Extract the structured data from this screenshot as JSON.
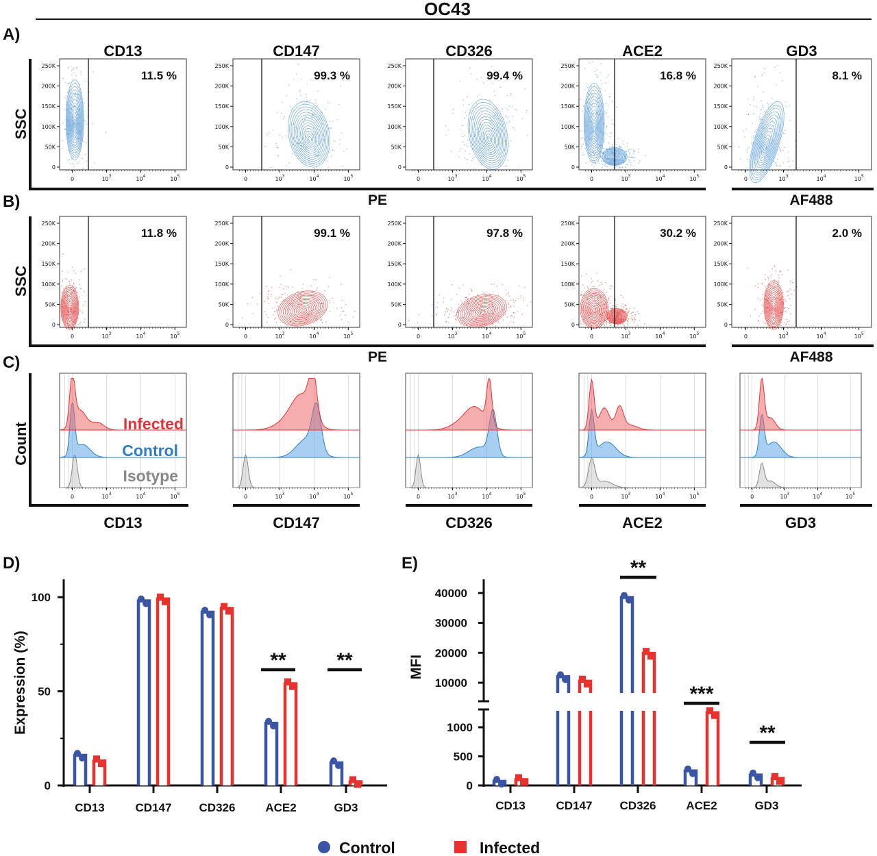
{
  "title": "OC43",
  "panel_labels": {
    "A": "A)",
    "B": "B)",
    "C": "C)",
    "D": "D)",
    "E": "E)"
  },
  "markers": [
    "CD13",
    "CD147",
    "CD326",
    "ACE2",
    "GD3"
  ],
  "flow": {
    "y_label": "SSC",
    "x_label_pe": "PE",
    "x_label_af488": "AF488",
    "y_ticks": [
      "250K",
      "200K",
      "150K",
      "100K",
      "50K",
      "0"
    ],
    "x_ticks": [
      {
        "base": "0",
        "exp": ""
      },
      {
        "base": "10",
        "exp": "3"
      },
      {
        "base": "10",
        "exp": "4"
      },
      {
        "base": "10",
        "exp": "5"
      }
    ],
    "row_a_percent": [
      "11.5 %",
      "99.3 %",
      "99.4 %",
      "16.8 %",
      "8.1 %"
    ],
    "row_b_percent": [
      "11.8 %",
      "99.1 %",
      "97.8 %",
      "30.2 %",
      "2.0 %"
    ],
    "row_a_color": "#5b9bd5",
    "row_b_color": "#e04848"
  },
  "histogram": {
    "y_label": "Count",
    "legend": {
      "infected": "Infected",
      "control": "Control",
      "isotype": "Isotype"
    },
    "colors": {
      "infected": "#e8323a",
      "control": "#2f7cc4",
      "isotype": "#888888"
    }
  },
  "legend": {
    "control": "Control",
    "infected": "Infected"
  },
  "colors": {
    "control": "#3a55a4",
    "infected": "#e8322e"
  },
  "chart_data": [
    {
      "type": "bar",
      "panel": "D)",
      "ylabel": "Expression (%)",
      "categories": [
        "CD13",
        "CD147",
        "CD326",
        "ACE2",
        "GD3"
      ],
      "ylim": [
        0,
        110
      ],
      "yticks": [
        "0",
        "50",
        "100"
      ],
      "series": [
        {
          "name": "Control",
          "values": [
            16,
            98,
            92,
            33,
            12
          ]
        },
        {
          "name": "Infected",
          "values": [
            13,
            99,
            94,
            54,
            2
          ]
        }
      ],
      "significance": [
        {
          "category": "ACE2",
          "label": "**"
        },
        {
          "category": "GD3",
          "label": "**"
        }
      ]
    },
    {
      "type": "bar",
      "panel": "E)",
      "ylabel": "MFI",
      "axis_break": true,
      "categories": [
        "CD13",
        "CD147",
        "CD326",
        "ACE2",
        "GD3"
      ],
      "yticks_lower": [
        "0",
        "500",
        "1000"
      ],
      "yticks_upper": [
        "10000",
        "20000",
        "30000",
        "40000"
      ],
      "series": [
        {
          "name": "Control",
          "values": [
            70,
            12000,
            38500,
            250,
            180
          ]
        },
        {
          "name": "Infected",
          "values": [
            100,
            10500,
            19800,
            1250,
            120
          ]
        }
      ],
      "significance": [
        {
          "category": "CD326",
          "label": "**"
        },
        {
          "category": "ACE2",
          "label": "***"
        },
        {
          "category": "GD3",
          "label": "**"
        }
      ]
    }
  ]
}
